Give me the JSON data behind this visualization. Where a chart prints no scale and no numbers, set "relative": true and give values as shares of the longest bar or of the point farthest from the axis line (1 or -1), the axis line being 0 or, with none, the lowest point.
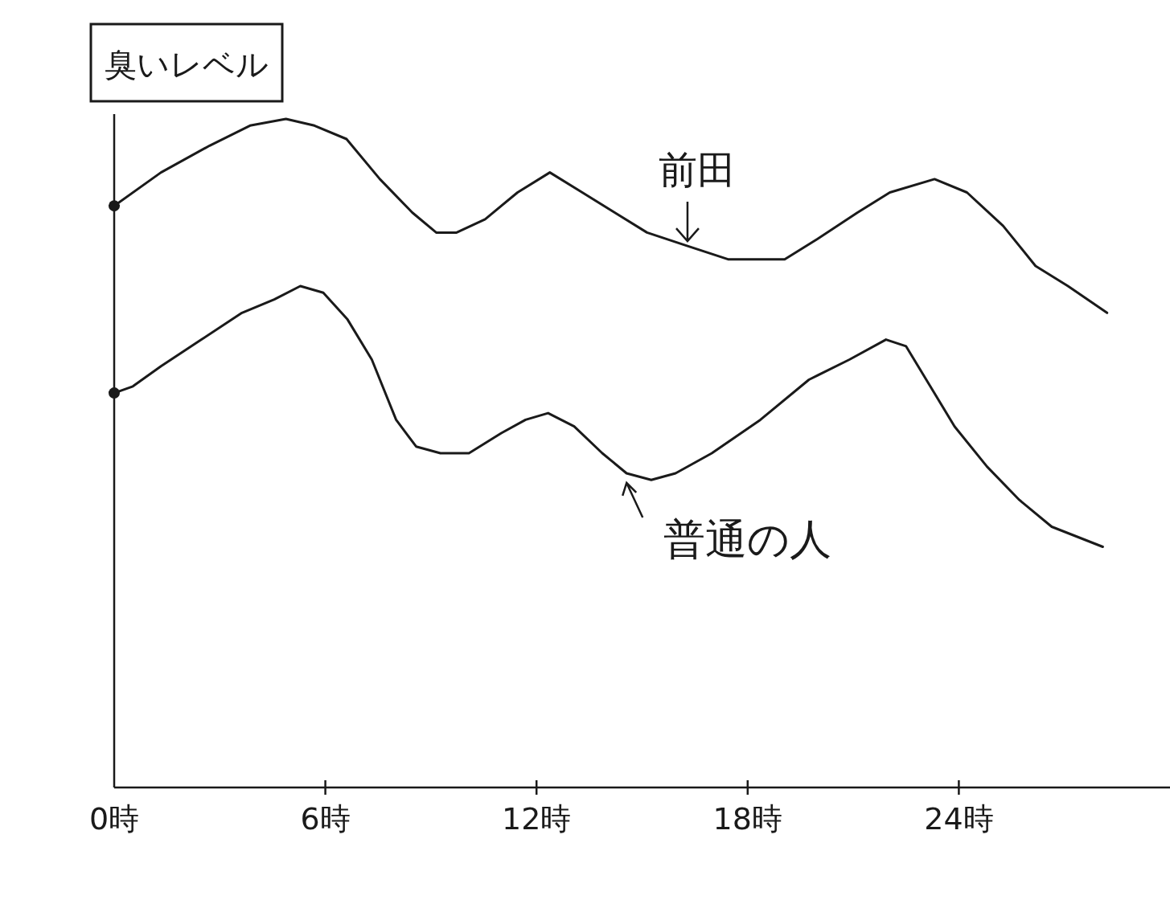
{
  "chart_data": {
    "type": "line",
    "ylabel": "臭いレベル",
    "relative": true,
    "xlim": [
      0,
      30
    ],
    "xticks": [
      {
        "value": 0,
        "label": "0時"
      },
      {
        "value": 6,
        "label": "6時"
      },
      {
        "value": 12,
        "label": "12時"
      },
      {
        "value": 18,
        "label": "18時"
      },
      {
        "value": 24,
        "label": "24時"
      }
    ],
    "color": "#1a1a1a",
    "series": [
      {
        "name": "前田",
        "color": "#1a1a1a",
        "x": [
          0,
          1.33,
          2.71,
          3.86,
          4.88,
          5.69,
          6.6,
          7.55,
          8.47,
          9.15,
          9.73,
          10.54,
          11.46,
          12.38,
          13.3,
          14.22,
          15.14,
          16.29,
          17.44,
          18.36,
          19.05,
          19.97,
          21.12,
          22.04,
          23.31,
          24.23,
          25.26,
          26.18,
          27.1,
          28.21
        ],
        "values": [
          0.87,
          0.92,
          0.96,
          0.99,
          1,
          0.99,
          0.97,
          0.91,
          0.86,
          0.83,
          0.83,
          0.85,
          0.89,
          0.92,
          0.89,
          0.86,
          0.83,
          0.81,
          0.79,
          0.79,
          0.79,
          0.82,
          0.86,
          0.89,
          0.91,
          0.89,
          0.84,
          0.78,
          0.75,
          0.71
        ]
      },
      {
        "name": "普通の人",
        "color": "#1a1a1a",
        "x": [
          0,
          0.53,
          1.33,
          2.48,
          3.63,
          4.55,
          5.29,
          5.94,
          6.63,
          7.32,
          8.01,
          8.58,
          9.27,
          10.08,
          11.0,
          11.69,
          12.33,
          13.07,
          13.87,
          14.56,
          15.26,
          15.95,
          16.98,
          18.36,
          19.74,
          20.89,
          21.93,
          22.5,
          23.19,
          23.88,
          24.8,
          25.72,
          26.64,
          28.09
        ],
        "values": [
          0.59,
          0.6,
          0.63,
          0.67,
          0.71,
          0.73,
          0.75,
          0.74,
          0.7,
          0.64,
          0.55,
          0.51,
          0.5,
          0.5,
          0.53,
          0.55,
          0.56,
          0.54,
          0.5,
          0.47,
          0.46,
          0.47,
          0.5,
          0.55,
          0.61,
          0.64,
          0.67,
          0.66,
          0.6,
          0.54,
          0.48,
          0.43,
          0.39,
          0.36
        ]
      }
    ]
  }
}
